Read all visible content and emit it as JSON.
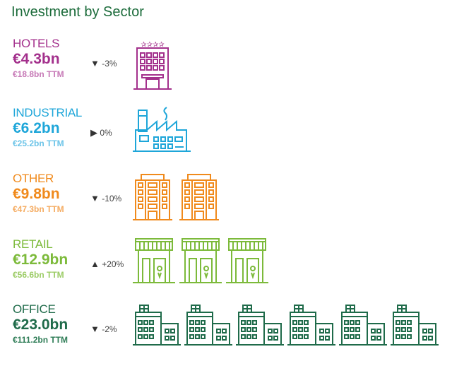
{
  "title": "Investment by Sector",
  "chart_data": {
    "type": "table",
    "title": "Investment by Sector",
    "sectors": [
      {
        "name": "HOTELS",
        "value": "€4.3bn",
        "ttm": "€18.8bn TTM",
        "change": "-3%",
        "trend": "down",
        "icon": "hotel-icon",
        "icon_count": 1,
        "color": "#a3308c",
        "ttm_color": "#c77ab7"
      },
      {
        "name": "INDUSTRIAL",
        "value": "€6.2bn",
        "ttm": "€25.2bn TTM",
        "change": "0%",
        "trend": "flat",
        "icon": "factory-icon",
        "icon_count": 1,
        "color": "#1ea6d9",
        "ttm_color": "#6cc4e8"
      },
      {
        "name": "OTHER",
        "value": "€9.8bn",
        "ttm": "€47.3bn TTM",
        "change": "-10%",
        "trend": "down",
        "icon": "apartment-building-icon",
        "icon_count": 2,
        "color": "#f08a1c",
        "ttm_color": "#f5ac62"
      },
      {
        "name": "RETAIL",
        "value": "€12.9bn",
        "ttm": "€56.6bn TTM",
        "change": "+20%",
        "trend": "up",
        "icon": "shop-icon",
        "icon_count": 3,
        "color": "#7cba3a",
        "ttm_color": "#9ccc66"
      },
      {
        "name": "OFFICE",
        "value": "€23.0bn",
        "ttm": "€111.2bn TTM",
        "change": "-2%",
        "trend": "down",
        "icon": "office-building-icon",
        "icon_count": 6,
        "color": "#1f6b4a",
        "ttm_color": "#2f7d57"
      }
    ]
  }
}
